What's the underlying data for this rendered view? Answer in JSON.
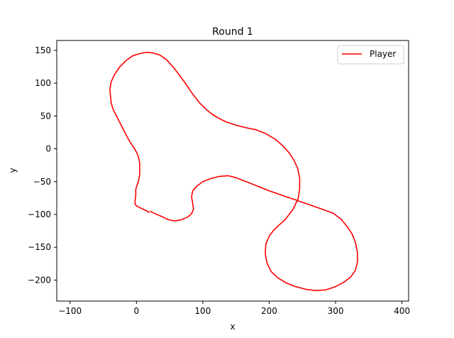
{
  "chart_data": {
    "type": "line",
    "title": "Round 1",
    "xlabel": "x",
    "ylabel": "y",
    "xlim": [
      -120,
      410
    ],
    "ylim": [
      -232,
      165
    ],
    "xticks": [
      -100,
      0,
      100,
      200,
      300,
      400
    ],
    "yticks": [
      150,
      100,
      50,
      0,
      -50,
      -100,
      -150,
      -200
    ],
    "xtick_labels": [
      "−100",
      "0",
      "100",
      "200",
      "300",
      "400"
    ],
    "ytick_labels": [
      "150",
      "100",
      "50",
      "0",
      "−50",
      "−100",
      "−150",
      "−200"
    ],
    "grid": false,
    "legend": {
      "placement": "top-right",
      "entries": [
        "Player"
      ]
    },
    "series": [
      {
        "name": "Player",
        "color": "#ff0000",
        "points": [
          [
            19,
            -97
          ],
          [
            16,
            -95
          ],
          [
            10,
            -92
          ],
          [
            4,
            -89
          ],
          [
            0,
            -87
          ],
          [
            -2,
            -84
          ],
          [
            -2,
            -78
          ],
          [
            -1,
            -71
          ],
          [
            -1,
            -62
          ],
          [
            1,
            -55
          ],
          [
            3,
            -50
          ],
          [
            4,
            -45
          ],
          [
            5,
            -38
          ],
          [
            5,
            -30
          ],
          [
            5,
            -22
          ],
          [
            3,
            -12
          ],
          [
            0,
            -5
          ],
          [
            -4,
            2
          ],
          [
            -10,
            11
          ],
          [
            -15,
            20
          ],
          [
            -20,
            30
          ],
          [
            -25,
            40
          ],
          [
            -30,
            50
          ],
          [
            -35,
            60
          ],
          [
            -38,
            70
          ],
          [
            -39,
            80
          ],
          [
            -40,
            90
          ],
          [
            -38,
            102
          ],
          [
            -33,
            113
          ],
          [
            -25,
            125
          ],
          [
            -15,
            135
          ],
          [
            -5,
            142
          ],
          [
            5,
            145
          ],
          [
            15,
            147
          ],
          [
            25,
            146
          ],
          [
            35,
            143
          ],
          [
            45,
            136
          ],
          [
            55,
            125
          ],
          [
            65,
            112
          ],
          [
            75,
            98
          ],
          [
            85,
            83
          ],
          [
            95,
            70
          ],
          [
            105,
            60
          ],
          [
            115,
            52
          ],
          [
            125,
            46
          ],
          [
            135,
            41
          ],
          [
            150,
            36
          ],
          [
            165,
            32
          ],
          [
            180,
            29
          ],
          [
            195,
            23
          ],
          [
            210,
            14
          ],
          [
            220,
            5
          ],
          [
            230,
            -6
          ],
          [
            237,
            -17
          ],
          [
            243,
            -30
          ],
          [
            246,
            -45
          ],
          [
            246,
            -60
          ],
          [
            244,
            -75
          ],
          [
            236,
            -92
          ],
          [
            224,
            -108
          ],
          [
            214,
            -117
          ],
          [
            206,
            -125
          ],
          [
            200,
            -133
          ],
          [
            195,
            -145
          ],
          [
            194,
            -160
          ],
          [
            197,
            -175
          ],
          [
            203,
            -187
          ],
          [
            212,
            -196
          ],
          [
            225,
            -204
          ],
          [
            240,
            -210
          ],
          [
            255,
            -214
          ],
          [
            270,
            -216
          ],
          [
            285,
            -215
          ],
          [
            300,
            -210
          ],
          [
            313,
            -203
          ],
          [
            323,
            -195
          ],
          [
            330,
            -185
          ],
          [
            333,
            -172
          ],
          [
            333,
            -158
          ],
          [
            330,
            -143
          ],
          [
            325,
            -130
          ],
          [
            317,
            -118
          ],
          [
            308,
            -107
          ],
          [
            296,
            -98
          ],
          [
            280,
            -92
          ],
          [
            260,
            -85
          ],
          [
            240,
            -78
          ],
          [
            220,
            -71
          ],
          [
            200,
            -64
          ],
          [
            180,
            -56
          ],
          [
            165,
            -50
          ],
          [
            150,
            -44
          ],
          [
            138,
            -41
          ],
          [
            125,
            -42
          ],
          [
            113,
            -45
          ],
          [
            100,
            -50
          ],
          [
            91,
            -57
          ],
          [
            85,
            -64
          ],
          [
            83,
            -73
          ],
          [
            85,
            -84
          ],
          [
            86,
            -92
          ],
          [
            83,
            -99
          ],
          [
            77,
            -104
          ],
          [
            68,
            -108
          ],
          [
            58,
            -110
          ],
          [
            48,
            -108
          ],
          [
            40,
            -104
          ],
          [
            31,
            -100
          ],
          [
            24,
            -97
          ],
          [
            21,
            -95
          ]
        ]
      }
    ]
  }
}
